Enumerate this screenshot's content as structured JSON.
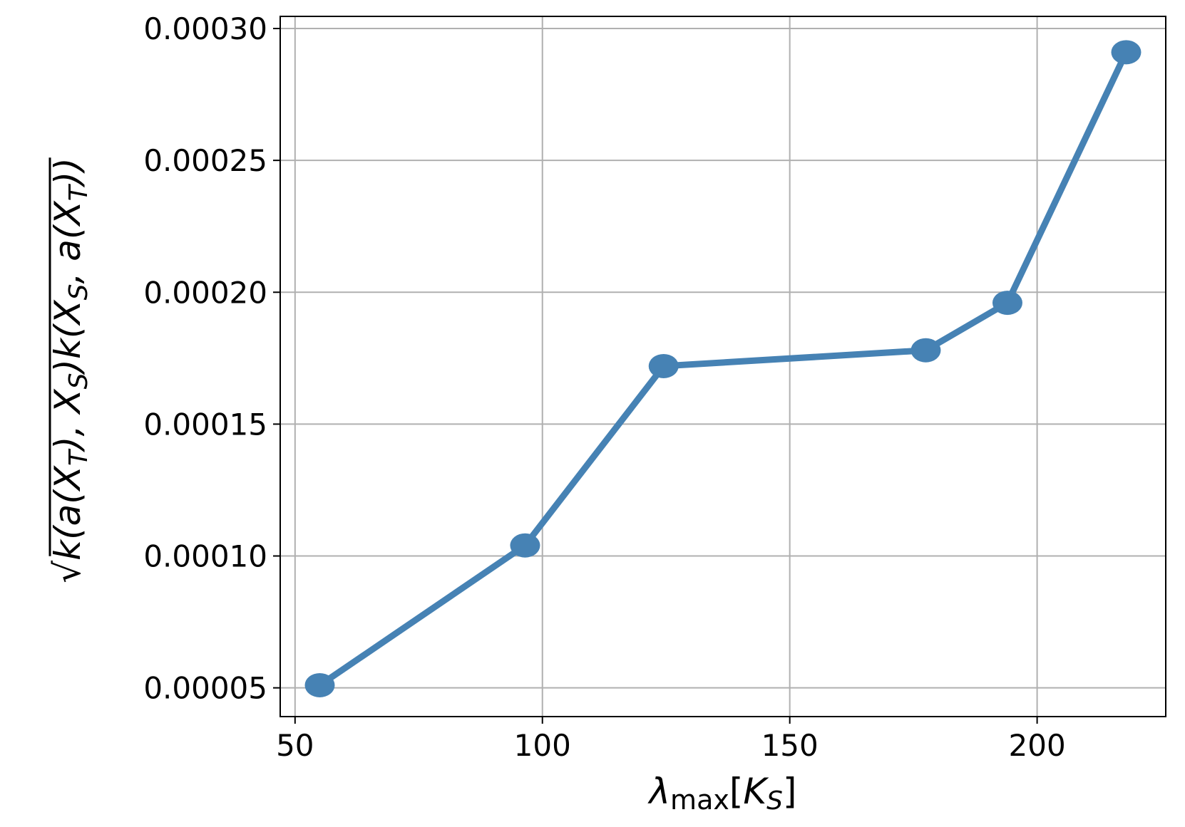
{
  "chart_data": {
    "type": "line",
    "title": "",
    "xlabel": {
      "main": "λ",
      "sub": "max",
      "bracket_open": "[",
      "var": "K",
      "var_sub": "S",
      "bracket_close": "]"
    },
    "ylabel": "√k(a(X_T), X_S)k(X_S, a(X_T))",
    "x": [
      55,
      96.5,
      124.5,
      177.5,
      194,
      218
    ],
    "series": [
      {
        "values": [
          5.1e-05,
          0.000104,
          0.000172,
          0.000178,
          0.000196,
          0.000291
        ],
        "color": "#4682b4",
        "marker": "circle"
      }
    ],
    "xlim": [
      47,
      226
    ],
    "ylim": [
      3.91e-05,
      0.0003046
    ],
    "xticks": [
      50,
      100,
      150,
      200
    ],
    "xtick_labels": [
      "50",
      "100",
      "150",
      "200"
    ],
    "yticks": [
      5e-05,
      0.0001,
      0.00015,
      0.0002,
      0.00025,
      0.0003
    ],
    "ytick_labels": [
      "0.00005",
      "0.00010",
      "0.00015",
      "0.00020",
      "0.00025",
      "0.00030"
    ],
    "grid": true,
    "legend": "none"
  }
}
